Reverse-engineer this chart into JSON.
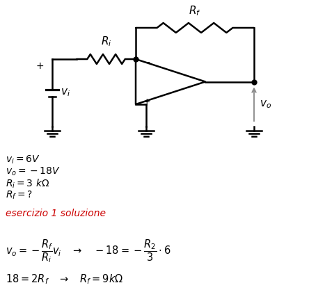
{
  "background_color": "#ffffff",
  "circuit_color": "#000000",
  "text_color": "#000000",
  "red_color": "#cc0000",
  "gray_color": "#888888",
  "given_lines": [
    "$v_i=6V$",
    "$v_o=-18V$",
    "$R_i=3\\ k\\Omega$",
    "$R_f=?$"
  ],
  "subtitle": "esercizio 1 soluzione"
}
